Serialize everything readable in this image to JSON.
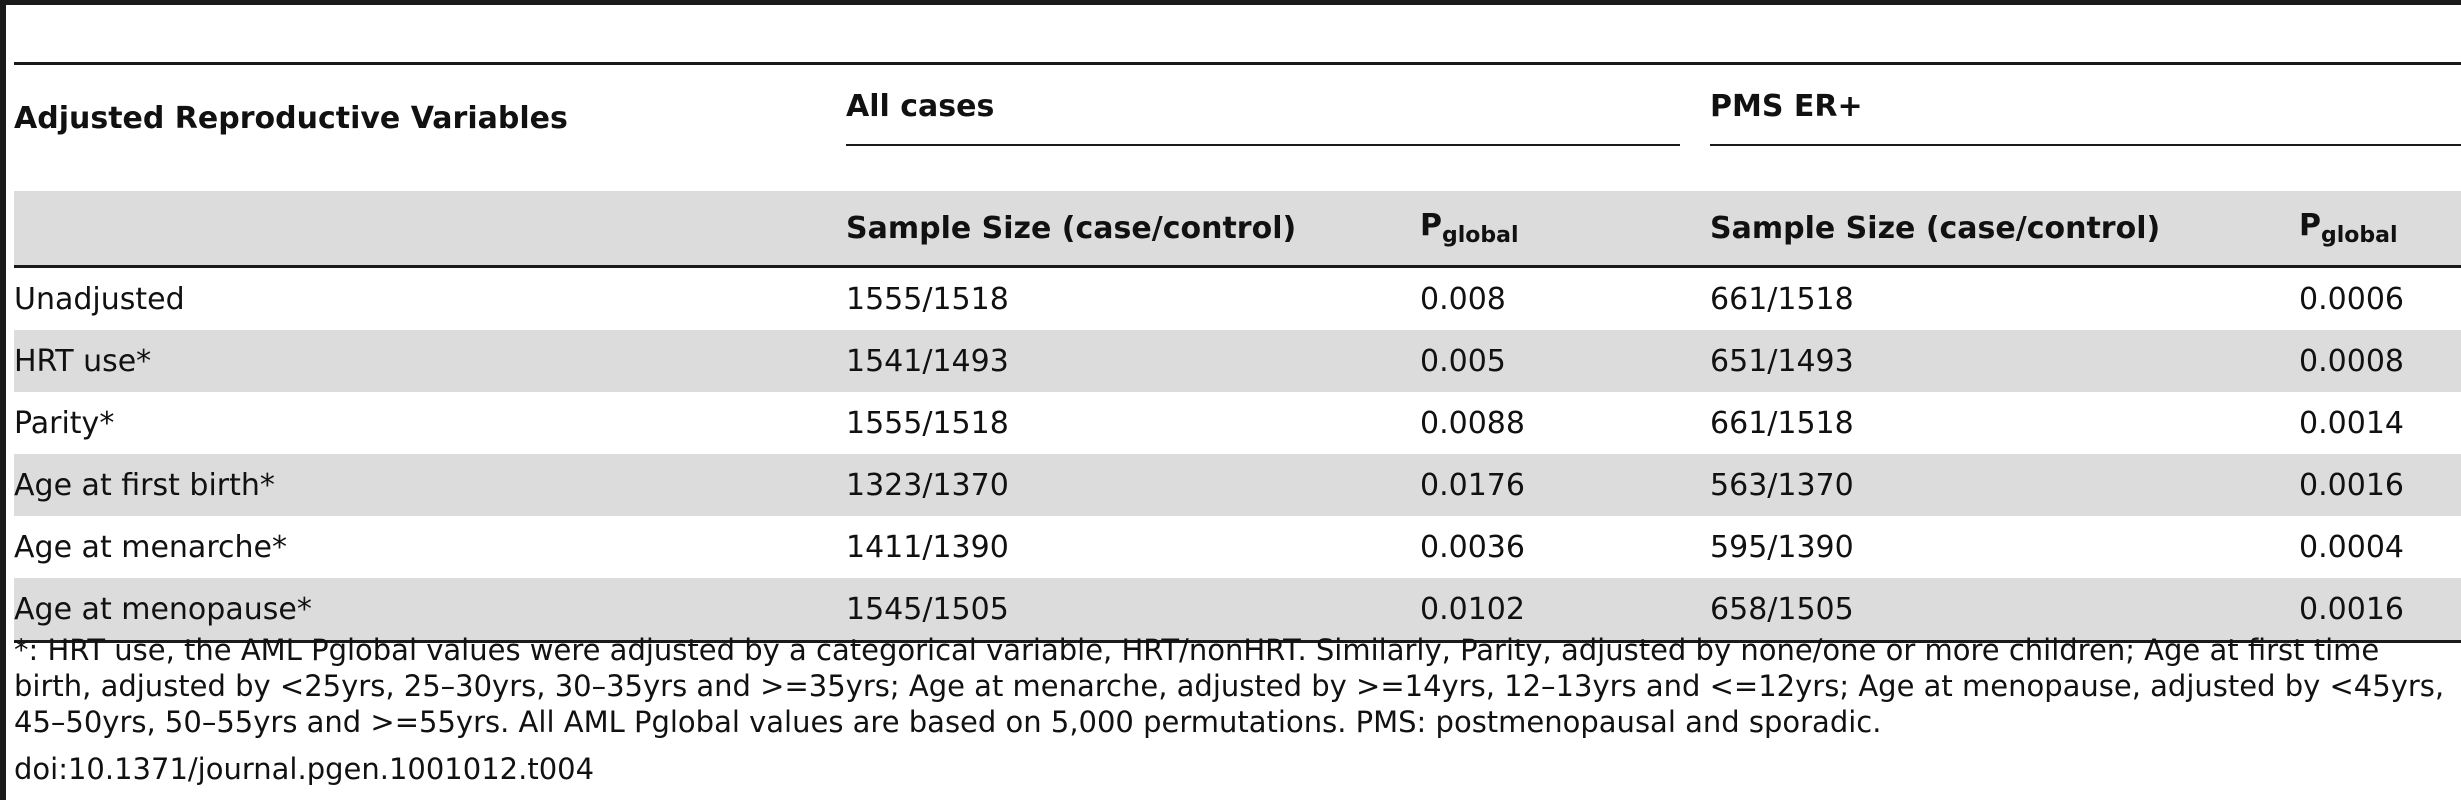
{
  "table": {
    "row_header": "Adjusted Reproductive Variables",
    "groups": [
      {
        "label": "All cases",
        "sample_label": "Sample Size (case/control)",
        "p_label": "P",
        "p_sub": "global"
      },
      {
        "label": "PMS ER+",
        "sample_label": "Sample Size (case/control)",
        "p_label": "P",
        "p_sub": "global"
      }
    ],
    "rows": [
      {
        "variable": "Unadjusted",
        "all_n": "1555/1518",
        "all_p": "0.008",
        "pms_n": "661/1518",
        "pms_p": "0.0006"
      },
      {
        "variable": "HRT use*",
        "all_n": "1541/1493",
        "all_p": "0.005",
        "pms_n": "651/1493",
        "pms_p": "0.0008"
      },
      {
        "variable": "Parity*",
        "all_n": "1555/1518",
        "all_p": "0.0088",
        "pms_n": "661/1518",
        "pms_p": "0.0014"
      },
      {
        "variable": "Age at first birth*",
        "all_n": "1323/1370",
        "all_p": "0.0176",
        "pms_n": "563/1370",
        "pms_p": "0.0016"
      },
      {
        "variable": "Age at menarche*",
        "all_n": "1411/1390",
        "all_p": "0.0036",
        "pms_n": "595/1390",
        "pms_p": "0.0004"
      },
      {
        "variable": "Age at menopause*",
        "all_n": "1545/1505",
        "all_p": "0.0102",
        "pms_n": "658/1505",
        "pms_p": "0.0016"
      }
    ]
  },
  "footnote": "*: HRT use, the AML Pglobal values were adjusted by a categorical variable, HRT/nonHRT. Similarly, Parity, adjusted by none/one or more children; Age at first time birth, adjusted by <25yrs, 25–30yrs, 30–35yrs and >=35yrs; Age at menarche, adjusted by >=14yrs, 12–13yrs and <=12yrs; Age at menopause, adjusted by <45yrs, 45–50yrs, 50–55yrs and >=55yrs. All AML Pglobal values are based on 5,000 permutations. PMS: postmenopausal and sporadic.",
  "doi": "doi:10.1371/journal.pgen.1001012.t004"
}
